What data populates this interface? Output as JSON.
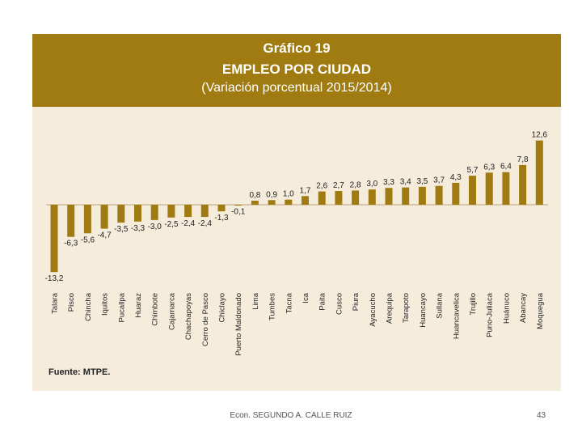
{
  "footer": {
    "author": "Econ. SEGUNDO A. CALLE RUIZ",
    "page": "43"
  },
  "source": "Fuente: MTPE.",
  "colors": {
    "header": "#a07b12",
    "bar": "#a07b12",
    "background": "#f5ecdc"
  },
  "chart_data": {
    "type": "bar",
    "title": "Gráfico 19",
    "subtitle": "EMPLEO POR CIUDAD",
    "subtitle2": "(Variación porcentual 2015/2014)",
    "xlabel": "",
    "ylabel": "",
    "ylim": [
      -13.2,
      12.6
    ],
    "categories": [
      "Talara",
      "Pisco",
      "Chincha",
      "Iquitos",
      "Pucallpa",
      "Huaraz",
      "Chimbote",
      "Cajamarca",
      "Chachapoyas",
      "Cerro de Pasco",
      "Chiclayo",
      "Puerto Maldonado",
      "Lima",
      "Tumbes",
      "Tacna",
      "Ica",
      "Paita",
      "Cusco",
      "Piura",
      "Ayacucho",
      "Arequipa",
      "Tarapoto",
      "Huancayo",
      "Sullana",
      "Huancavelica",
      "Trujillo",
      "Puno-Juliaca",
      "Huánuco",
      "Abancay",
      "Moquegua"
    ],
    "values": [
      -13.2,
      -6.3,
      -5.6,
      -4.7,
      -3.5,
      -3.3,
      -3.0,
      -2.5,
      -2.4,
      -2.4,
      -1.3,
      -0.1,
      0.8,
      0.9,
      1.0,
      1.7,
      2.6,
      2.7,
      2.8,
      3.0,
      3.3,
      3.4,
      3.5,
      3.7,
      4.3,
      5.7,
      6.3,
      6.4,
      7.8,
      12.6
    ],
    "value_labels": [
      "-13,2",
      "-6,3",
      "-5,6",
      "-4,7",
      "-3,5",
      "-3,3",
      "-3,0",
      "-2,5",
      "-2,4",
      "-2,4",
      "-1,3",
      "-0,1",
      "0,8",
      "0,9",
      "1,0",
      "1,7",
      "2,6",
      "2,7",
      "2,8",
      "3,0",
      "3,3",
      "3,4",
      "3,5",
      "3,7",
      "4,3",
      "5,7",
      "6,3",
      "6,4",
      "7,8",
      "12,6"
    ]
  }
}
